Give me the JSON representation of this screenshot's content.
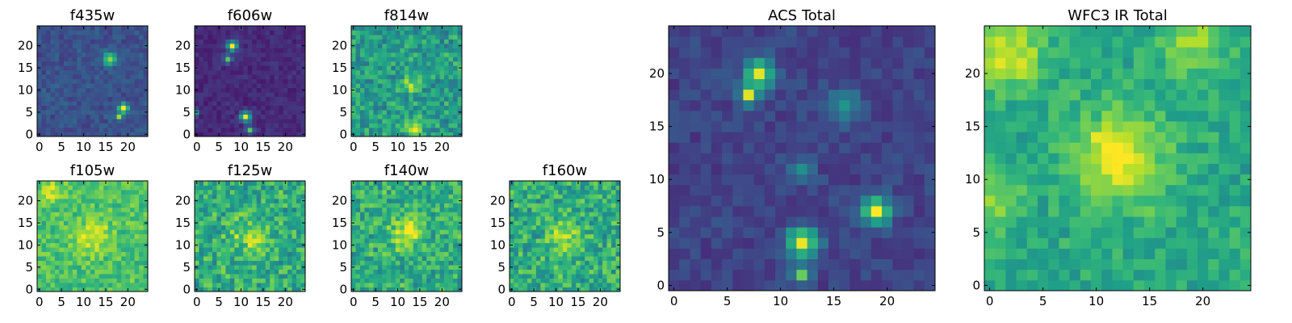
{
  "chart_data": [
    {
      "type": "heatmap",
      "title": "f435w",
      "colormap": "viridis",
      "xlim": [
        0,
        24
      ],
      "ylim": [
        0,
        24
      ],
      "xticks": [
        "0",
        "5",
        "10",
        "15",
        "20"
      ],
      "yticks": [
        "0",
        "5",
        "10",
        "15",
        "20"
      ],
      "size": [
        25,
        25
      ],
      "mean": 0.25,
      "noise": 0.07,
      "seed": 11,
      "hotspots": [
        [
          16,
          17,
          0.65,
          1
        ],
        [
          19,
          6,
          0.9,
          0.7
        ],
        [
          18,
          4,
          0.6,
          0.6
        ]
      ]
    },
    {
      "type": "heatmap",
      "title": "f606w",
      "colormap": "viridis",
      "xlim": [
        0,
        24
      ],
      "ylim": [
        0,
        24
      ],
      "xticks": [
        "0",
        "5",
        "10",
        "15",
        "20"
      ],
      "yticks": [
        "0",
        "5",
        "10",
        "15",
        "20"
      ],
      "size": [
        25,
        25
      ],
      "mean": 0.12,
      "noise": 0.05,
      "seed": 12,
      "hotspots": [
        [
          8,
          20,
          0.85,
          0.8
        ],
        [
          7,
          17,
          0.6,
          0.6
        ],
        [
          11,
          4,
          0.85,
          0.8
        ],
        [
          12,
          1,
          0.6,
          0.6
        ],
        [
          0,
          5,
          0.45,
          0.5
        ]
      ]
    },
    {
      "type": "heatmap",
      "title": "f814w",
      "colormap": "viridis",
      "xlim": [
        0,
        24
      ],
      "ylim": [
        0,
        24
      ],
      "xticks": [
        "0",
        "5",
        "10",
        "15",
        "20"
      ],
      "yticks": [
        "0",
        "5",
        "10",
        "15",
        "20"
      ],
      "size": [
        25,
        25
      ],
      "mean": 0.55,
      "noise": 0.16,
      "seed": 13,
      "hotspots": [
        [
          13,
          11,
          0.35,
          1.2
        ],
        [
          14,
          2,
          0.4,
          1.2
        ]
      ]
    },
    {
      "type": "heatmap",
      "title": "f105w",
      "colormap": "viridis",
      "xlim": [
        0,
        24
      ],
      "ylim": [
        0,
        24
      ],
      "xticks": [
        "0",
        "5",
        "10",
        "15",
        "20"
      ],
      "yticks": [
        "0",
        "5",
        "10",
        "15",
        "20"
      ],
      "size": [
        25,
        25
      ],
      "mean": 0.7,
      "noise": 0.12,
      "seed": 14,
      "hotspots": [
        [
          12,
          12,
          0.25,
          3
        ],
        [
          3,
          22,
          0.2,
          2
        ]
      ]
    },
    {
      "type": "heatmap",
      "title": "f125w",
      "colormap": "viridis",
      "xlim": [
        0,
        24
      ],
      "ylim": [
        0,
        24
      ],
      "xticks": [
        "0",
        "5",
        "10",
        "15",
        "20"
      ],
      "yticks": [
        "0",
        "5",
        "10",
        "15",
        "20"
      ],
      "size": [
        25,
        25
      ],
      "mean": 0.62,
      "noise": 0.17,
      "seed": 15,
      "hotspots": [
        [
          12,
          12,
          0.2,
          3
        ]
      ]
    },
    {
      "type": "heatmap",
      "title": "f140w",
      "colormap": "viridis",
      "xlim": [
        0,
        24
      ],
      "ylim": [
        0,
        24
      ],
      "xticks": [
        "0",
        "5",
        "10",
        "15",
        "20"
      ],
      "yticks": [
        "0",
        "5",
        "10",
        "15",
        "20"
      ],
      "size": [
        25,
        25
      ],
      "mean": 0.62,
      "noise": 0.17,
      "seed": 16,
      "hotspots": [
        [
          12,
          13,
          0.3,
          2.5
        ]
      ]
    },
    {
      "type": "heatmap",
      "title": "f160w",
      "colormap": "viridis",
      "xlim": [
        0,
        24
      ],
      "ylim": [
        0,
        24
      ],
      "xticks": [
        "0",
        "5",
        "10",
        "15",
        "20"
      ],
      "yticks": [
        "0",
        "5",
        "10",
        "15",
        "20"
      ],
      "size": [
        25,
        25
      ],
      "mean": 0.62,
      "noise": 0.17,
      "seed": 17,
      "hotspots": [
        [
          12,
          12,
          0.25,
          2.5
        ]
      ]
    },
    {
      "type": "heatmap",
      "title": "ACS Total",
      "colormap": "viridis",
      "xlim": [
        0,
        24
      ],
      "ylim": [
        0,
        24
      ],
      "xticks": [
        "0",
        "5",
        "10",
        "15",
        "20"
      ],
      "yticks": [
        "0",
        "5",
        "10",
        "15",
        "20"
      ],
      "size": [
        25,
        25
      ],
      "mean": 0.2,
      "noise": 0.06,
      "seed": 18,
      "hotspots": [
        [
          8,
          20,
          0.75,
          0.9
        ],
        [
          7,
          18,
          0.75,
          0.6
        ],
        [
          16,
          17,
          0.35,
          1
        ],
        [
          12,
          4,
          0.75,
          1
        ],
        [
          12,
          1,
          0.6,
          0.6
        ],
        [
          19,
          7,
          0.75,
          0.9
        ],
        [
          12,
          11,
          0.25,
          0.8
        ]
      ]
    },
    {
      "type": "heatmap",
      "title": "WFC3 IR Total",
      "colormap": "viridis",
      "xlim": [
        0,
        24
      ],
      "ylim": [
        0,
        24
      ],
      "xticks": [
        "0",
        "5",
        "10",
        "15",
        "20"
      ],
      "yticks": [
        "0",
        "5",
        "10",
        "15",
        "20"
      ],
      "size": [
        25,
        25
      ],
      "mean": 0.6,
      "noise": 0.1,
      "seed": 19,
      "hotspots": [
        [
          12,
          12,
          0.4,
          3
        ],
        [
          2,
          22,
          0.3,
          2.5
        ],
        [
          19,
          23,
          0.25,
          2
        ],
        [
          0,
          8,
          0.25,
          2
        ]
      ]
    }
  ]
}
